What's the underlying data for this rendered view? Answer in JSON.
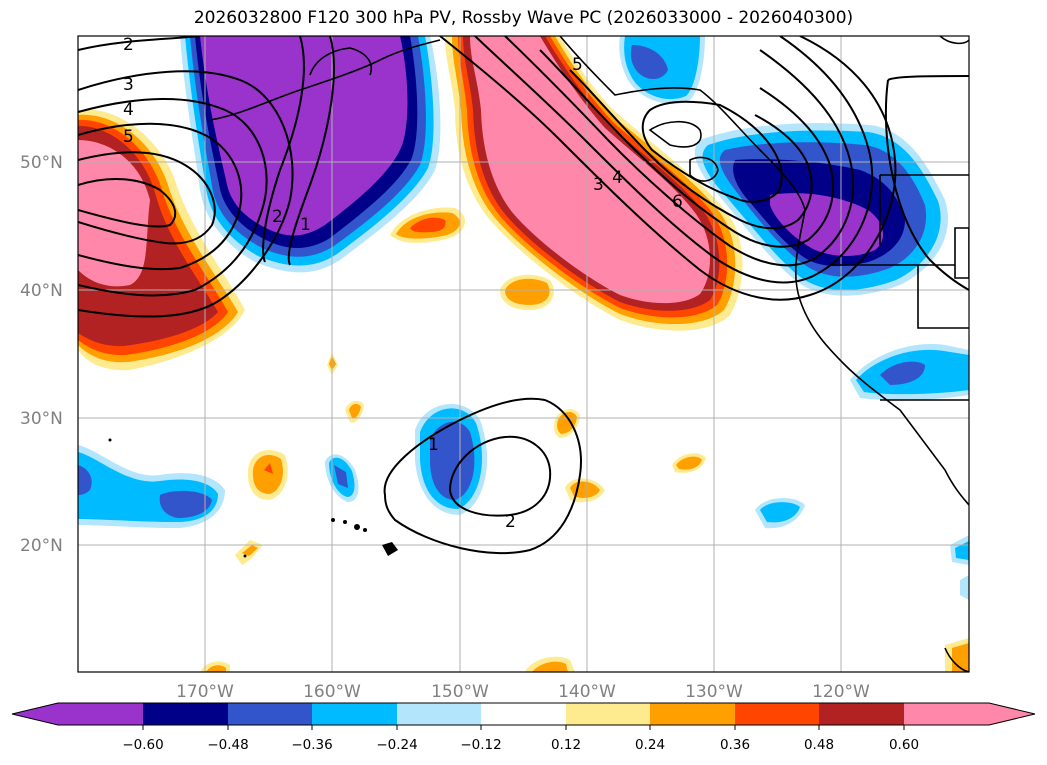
{
  "title": "2026032800 F120 300 hPa PV, Rossby Wave PC (2026033000 - 2026040300)",
  "colors": {
    "neg_060": "#9933cc",
    "neg_048": "#000088",
    "neg_036": "#3355cc",
    "neg_024": "#00bbff",
    "neg_012": "#b3e5fc",
    "pos_012": "#ffeb8f",
    "pos_024": "#ffa000",
    "pos_036": "#ff4500",
    "pos_048": "#b22222",
    "pos_060": "#ff88aa"
  },
  "axes": {
    "lat_labels": [
      "50°N",
      "40°N",
      "30°N",
      "20°N"
    ],
    "lon_labels": [
      "170°W",
      "160°W",
      "150°W",
      "140°W",
      "130°W",
      "120°W"
    ]
  },
  "contour_labels": [
    "2",
    "3",
    "4",
    "5",
    "2",
    "1",
    "3",
    "4",
    "6",
    "5",
    "1",
    "2"
  ],
  "colorbar": {
    "ticks": [
      "−0.60",
      "−0.48",
      "−0.36",
      "−0.24",
      "−0.12",
      "0.12",
      "0.24",
      "0.36",
      "0.48",
      "0.60"
    ]
  }
}
